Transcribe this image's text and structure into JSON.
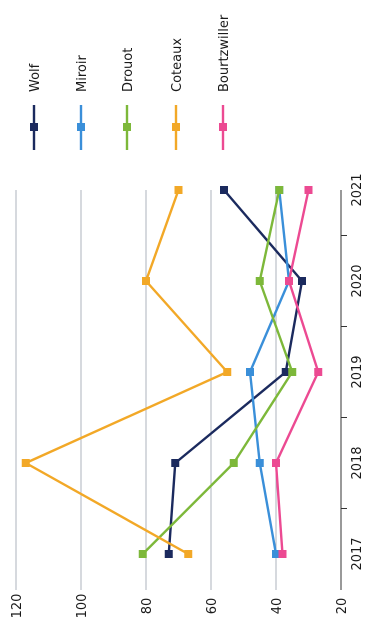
{
  "chart_data": {
    "type": "line",
    "title": "",
    "xlabel": "",
    "ylabel": "",
    "categories": [
      "2017",
      "2018",
      "2019",
      "2020",
      "2021"
    ],
    "ylim": [
      20,
      120
    ],
    "y_ticks": [
      20,
      40,
      60,
      80,
      100,
      120
    ],
    "grid": "horizontal",
    "orientation": "rotated-90-clockwise",
    "legend_position": "right",
    "series": [
      {
        "name": "Wolf",
        "color": "#1b2a5e",
        "values": [
          73,
          71,
          37,
          32,
          56
        ]
      },
      {
        "name": "Miroir",
        "color": "#3a8fd9",
        "values": [
          40,
          45,
          48,
          36,
          39
        ]
      },
      {
        "name": "Drouot",
        "color": "#7db83a",
        "values": [
          81,
          53,
          35,
          45,
          39
        ]
      },
      {
        "name": "Coteaux",
        "color": "#f2a827",
        "values": [
          67,
          117,
          55,
          80,
          70
        ]
      },
      {
        "name": "Bourtzwiller",
        "color": "#ec4a92",
        "values": [
          38,
          40,
          27,
          36,
          30
        ]
      }
    ]
  }
}
